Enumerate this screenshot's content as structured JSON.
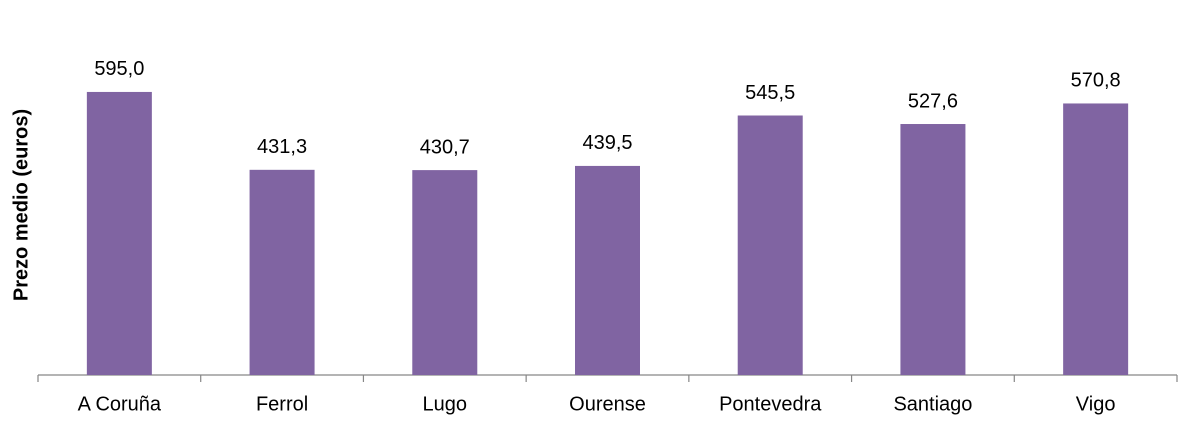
{
  "chart_data": {
    "type": "bar",
    "y_label": "Prezo medio (euros)",
    "categories": [
      "A Coruña",
      "Ferrol",
      "Lugo",
      "Ourense",
      "Pontevedra",
      "Santiago",
      "Vigo"
    ],
    "values": [
      595.0,
      431.3,
      430.7,
      439.5,
      545.5,
      527.6,
      570.8
    ],
    "value_labels": [
      "595,0",
      "431,3",
      "430,7",
      "439,5",
      "545,5",
      "527,6",
      "570,8"
    ],
    "color": "#8064a2",
    "ylim": [
      0,
      700
    ]
  }
}
